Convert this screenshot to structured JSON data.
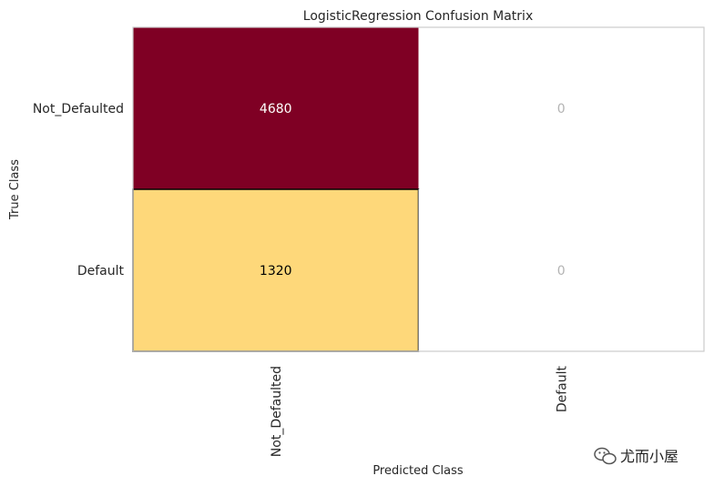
{
  "chart_data": {
    "type": "heatmap",
    "title": "LogisticRegression Confusion Matrix",
    "xlabel": "Predicted Class",
    "ylabel": "True Class",
    "x_categories": [
      "Not_Defaulted",
      "Default"
    ],
    "y_categories": [
      "Not_Defaulted",
      "Default"
    ],
    "values": [
      [
        4680,
        0
      ],
      [
        1320,
        0
      ]
    ],
    "grid": false,
    "colors": {
      "max": "#7f0024",
      "low": "#fed97a",
      "zero": "#ffffff",
      "text_on_max": "#ffffff",
      "text_on_low": "#000000",
      "text_on_zero": "#b3b3b3"
    }
  },
  "watermark": {
    "text": "尤而小屋",
    "icon": "wechat-icon"
  }
}
